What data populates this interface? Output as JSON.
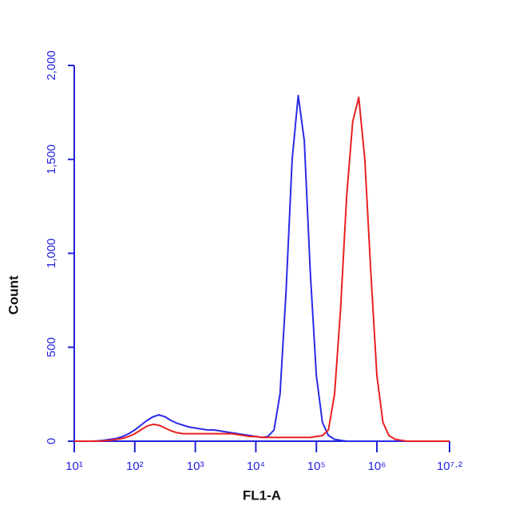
{
  "chart_data": {
    "type": "line",
    "x_label": "FL1-A",
    "y_label": "Count",
    "xscale": "log",
    "axis_color": "#2222dd",
    "xlim": [
      10,
      15848932
    ],
    "ylim": [
      0,
      2000
    ],
    "xticks": [
      {
        "value": 10,
        "label": "10¹"
      },
      {
        "value": 100,
        "label": "10²"
      },
      {
        "value": 1000,
        "label": "10³"
      },
      {
        "value": 10000,
        "label": "10⁴"
      },
      {
        "value": 100000,
        "label": "10⁵"
      },
      {
        "value": 1000000,
        "label": "10⁶"
      },
      {
        "value": 15848932,
        "label": "10⁷·²"
      }
    ],
    "yticks": [
      0,
      500,
      {
        "value": 1000,
        "label": "1,000"
      },
      {
        "value": 1500,
        "label": "1,500"
      },
      {
        "value": 2000,
        "label": "2,000"
      }
    ],
    "x": [
      10,
      12.6,
      15.8,
      20,
      25.1,
      31.6,
      39.8,
      50.1,
      63.1,
      79.4,
      100,
      126,
      158,
      200,
      251,
      316,
      398,
      501,
      631,
      794,
      1000,
      1260,
      1580,
      2000,
      2510,
      3160,
      3980,
      5010,
      6310,
      7940,
      10000,
      12600,
      15800,
      20000,
      25100,
      31600,
      39800,
      50100,
      63100,
      79400,
      100000,
      126000,
      158000,
      200000,
      251000,
      316000,
      398000,
      501000,
      631000,
      794000,
      1000000,
      1260000,
      1580000,
      2000000,
      2510000,
      3160000,
      3980000,
      5010000,
      6310000,
      7940000,
      10000000,
      12600000,
      15800000
    ],
    "series": [
      {
        "color": "#2a2ae8",
        "values": [
          0,
          0,
          0,
          0,
          2,
          5,
          10,
          15,
          25,
          40,
          60,
          85,
          110,
          130,
          140,
          130,
          110,
          95,
          85,
          75,
          70,
          65,
          60,
          60,
          55,
          50,
          45,
          40,
          35,
          30,
          25,
          20,
          25,
          60,
          250,
          800,
          1500,
          1840,
          1600,
          900,
          350,
          100,
          30,
          10,
          5,
          0,
          0,
          0,
          0,
          0,
          0,
          0,
          0,
          0,
          0,
          0,
          0,
          0,
          0,
          0,
          0,
          0,
          0
        ]
      },
      {
        "color": "#e82020",
        "values": [
          0,
          0,
          0,
          0,
          0,
          2,
          5,
          10,
          15,
          25,
          40,
          60,
          80,
          90,
          85,
          70,
          55,
          45,
          40,
          40,
          40,
          40,
          40,
          40,
          40,
          40,
          40,
          35,
          30,
          25,
          25,
          20,
          20,
          20,
          20,
          20,
          20,
          20,
          20,
          20,
          25,
          30,
          60,
          250,
          700,
          1300,
          1700,
          1830,
          1500,
          900,
          350,
          100,
          30,
          10,
          5,
          0,
          0,
          0,
          0,
          0,
          0,
          0,
          0
        ]
      }
    ]
  }
}
